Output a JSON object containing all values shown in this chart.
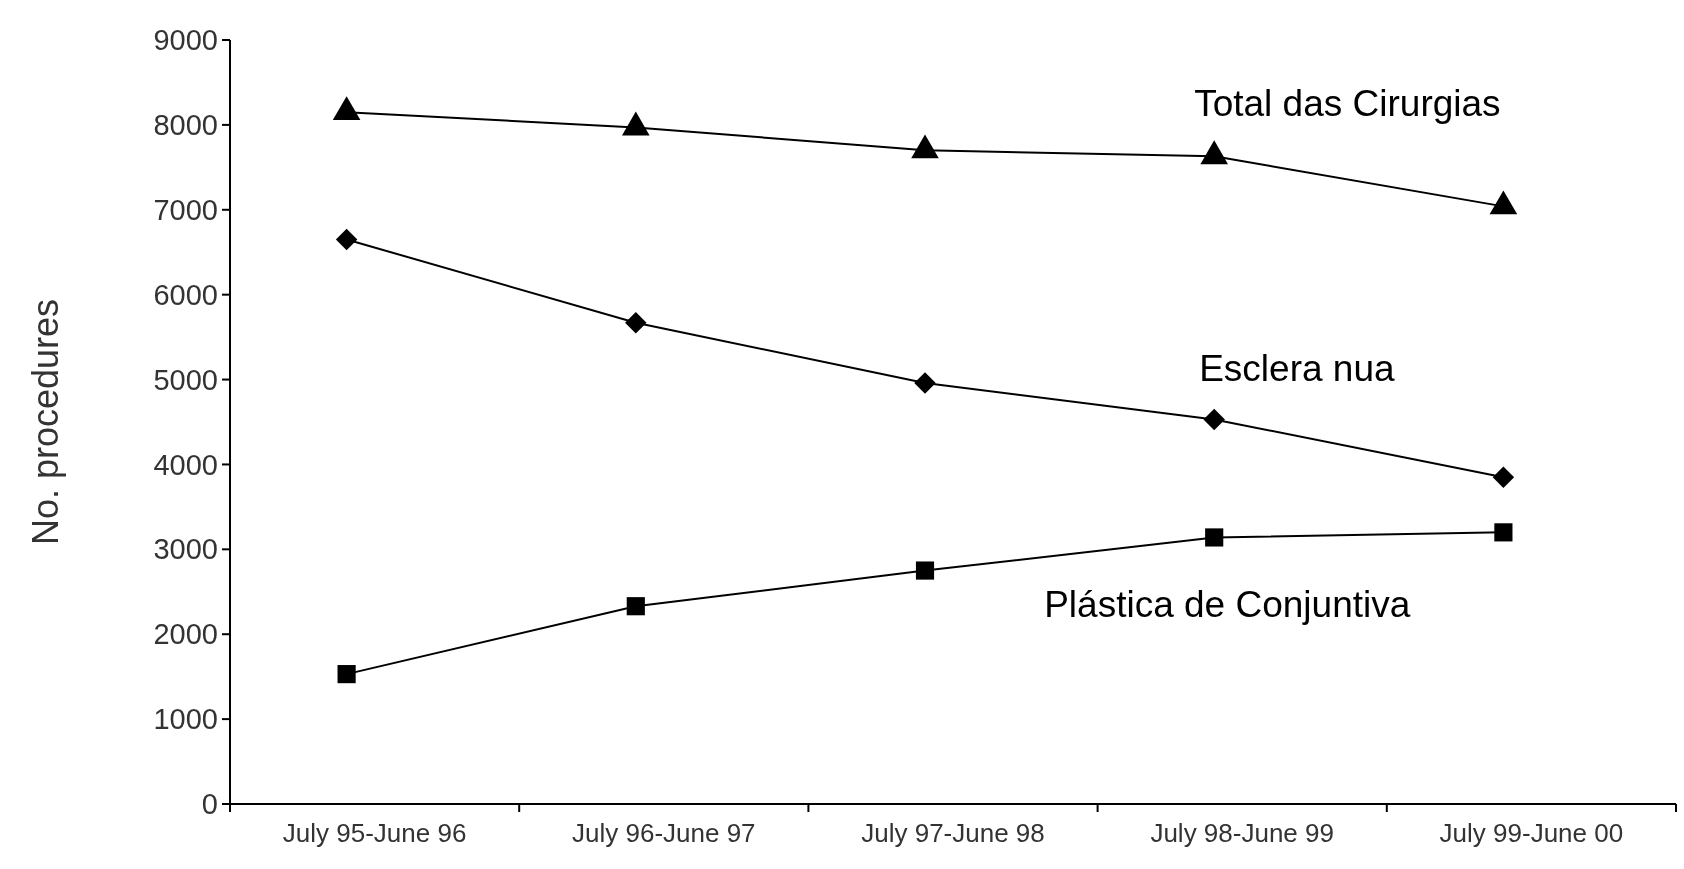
{
  "chart_data": {
    "type": "line",
    "ylabel": "No. procedures",
    "categories": [
      "July 95-June 96",
      "July 96-June 97",
      "July 97-June 98",
      "July 98-June 99",
      "July 99-June 00"
    ],
    "ylim": [
      0,
      9000
    ],
    "yticks": [
      0,
      1000,
      2000,
      3000,
      4000,
      5000,
      6000,
      7000,
      8000,
      9000
    ],
    "grid": false,
    "line_style": "solid",
    "series": [
      {
        "name": "Total das Cirurgias",
        "color": "#000000",
        "marker": "triangle",
        "values": [
          8150,
          7970,
          7700,
          7630,
          7040
        ]
      },
      {
        "name": "Esclera nua",
        "color": "#000000",
        "marker": "diamond",
        "values": [
          6650,
          5670,
          4960,
          4530,
          3850
        ]
      },
      {
        "name": "Plástica de Conjuntiva",
        "color": "#000000",
        "marker": "square",
        "values": [
          1530,
          2330,
          2750,
          3140,
          3200
        ]
      }
    ]
  }
}
